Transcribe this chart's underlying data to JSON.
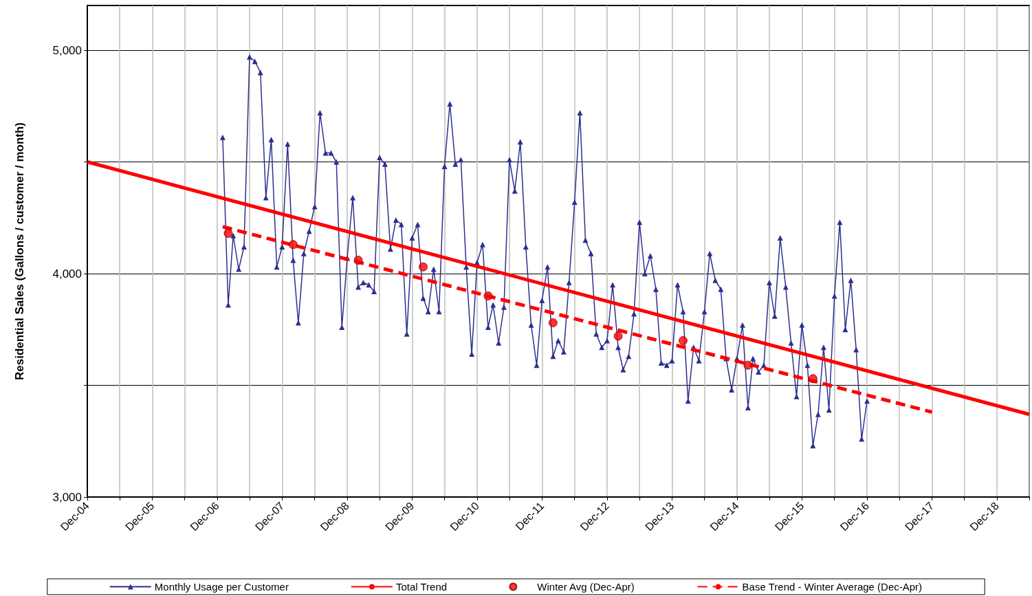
{
  "chart_data": {
    "type": "line",
    "ylabel": "Residential Sales (Gallons / customer / month)",
    "xlim": [
      "2004-12",
      "2019-06"
    ],
    "xticks": [
      {
        "value": "2004-12",
        "label": "Dec-04"
      },
      {
        "value": "2005-06",
        "label": null
      },
      {
        "value": "2005-12",
        "label": "Dec-05"
      },
      {
        "value": "2006-06",
        "label": null
      },
      {
        "value": "2006-12",
        "label": "Dec-06"
      },
      {
        "value": "2007-06",
        "label": null
      },
      {
        "value": "2007-12",
        "label": "Dec-07"
      },
      {
        "value": "2008-06",
        "label": null
      },
      {
        "value": "2008-12",
        "label": "Dec-08"
      },
      {
        "value": "2009-06",
        "label": null
      },
      {
        "value": "2009-12",
        "label": "Dec-09"
      },
      {
        "value": "2010-06",
        "label": null
      },
      {
        "value": "2010-12",
        "label": "Dec-10"
      },
      {
        "value": "2011-06",
        "label": null
      },
      {
        "value": "2011-12",
        "label": "Dec-11"
      },
      {
        "value": "2012-06",
        "label": null
      },
      {
        "value": "2012-12",
        "label": "Dec-12"
      },
      {
        "value": "2013-06",
        "label": null
      },
      {
        "value": "2013-12",
        "label": "Dec-13"
      },
      {
        "value": "2014-06",
        "label": null
      },
      {
        "value": "2014-12",
        "label": "Dec-14"
      },
      {
        "value": "2015-06",
        "label": null
      },
      {
        "value": "2015-12",
        "label": "Dec-15"
      },
      {
        "value": "2016-06",
        "label": null
      },
      {
        "value": "2016-12",
        "label": "Dec-16"
      },
      {
        "value": "2017-06",
        "label": null
      },
      {
        "value": "2017-12",
        "label": "Dec-17"
      },
      {
        "value": "2018-06",
        "label": null
      },
      {
        "value": "2018-12",
        "label": "Dec-18"
      },
      {
        "value": "2019-06",
        "label": null
      }
    ],
    "ylim": [
      3000,
      5200
    ],
    "yticks": [
      {
        "value": 3000,
        "label": "3,000"
      },
      {
        "value": 3500,
        "label": null
      },
      {
        "value": 4000,
        "label": "4,000"
      },
      {
        "value": 4500,
        "label": null
      },
      {
        "value": 5000,
        "label": "5,000"
      }
    ],
    "grid": true,
    "legend": "bottom",
    "series": [
      {
        "name": "Monthly Usage per Customer",
        "color": "#2b2f8f",
        "marker": "triangle",
        "line_style": "solid",
        "x": [
          "2007-01",
          "2007-02",
          "2007-03",
          "2007-04",
          "2007-05",
          "2007-06",
          "2007-07",
          "2007-08",
          "2007-09",
          "2007-10",
          "2007-11",
          "2007-12",
          "2008-01",
          "2008-02",
          "2008-03",
          "2008-04",
          "2008-05",
          "2008-06",
          "2008-07",
          "2008-08",
          "2008-09",
          "2008-10",
          "2008-11",
          "2008-12",
          "2009-01",
          "2009-02",
          "2009-03",
          "2009-04",
          "2009-05",
          "2009-06",
          "2009-07",
          "2009-08",
          "2009-09",
          "2009-10",
          "2009-11",
          "2009-12",
          "2010-01",
          "2010-02",
          "2010-03",
          "2010-04",
          "2010-05",
          "2010-06",
          "2010-07",
          "2010-08",
          "2010-09",
          "2010-10",
          "2010-11",
          "2010-12",
          "2011-01",
          "2011-02",
          "2011-03",
          "2011-04",
          "2011-05",
          "2011-06",
          "2011-07",
          "2011-08",
          "2011-09",
          "2011-10",
          "2011-11",
          "2011-12",
          "2012-01",
          "2012-02",
          "2012-03",
          "2012-04",
          "2012-05",
          "2012-06",
          "2012-07",
          "2012-08",
          "2012-09",
          "2012-10",
          "2012-11",
          "2012-12",
          "2013-01",
          "2013-02",
          "2013-03",
          "2013-04",
          "2013-05",
          "2013-06",
          "2013-07",
          "2013-08",
          "2013-09",
          "2013-10",
          "2013-11",
          "2013-12",
          "2014-01",
          "2014-02",
          "2014-03",
          "2014-04",
          "2014-05",
          "2014-06",
          "2014-07",
          "2014-08",
          "2014-09",
          "2014-10",
          "2014-11",
          "2014-12",
          "2015-01",
          "2015-02",
          "2015-03",
          "2015-04",
          "2015-05",
          "2015-06",
          "2015-07",
          "2015-08",
          "2015-09",
          "2015-10",
          "2015-11",
          "2015-12",
          "2016-01",
          "2016-02",
          "2016-03",
          "2016-04",
          "2016-05",
          "2016-06",
          "2016-07",
          "2016-08",
          "2016-09",
          "2016-10",
          "2016-11",
          "2016-12"
        ],
        "values": [
          4610,
          3860,
          4170,
          4020,
          4120,
          4970,
          4950,
          4900,
          4340,
          4600,
          4030,
          4120,
          4580,
          4060,
          3780,
          4090,
          4190,
          4300,
          4720,
          4540,
          4540,
          4500,
          3760,
          4070,
          4340,
          3940,
          3960,
          3950,
          3920,
          4520,
          4490,
          4110,
          4240,
          4220,
          3730,
          4160,
          4220,
          3890,
          3830,
          4020,
          3830,
          4480,
          4760,
          4490,
          4510,
          4030,
          3640,
          4050,
          4130,
          3760,
          3860,
          3690,
          3850,
          4510,
          4370,
          4590,
          4120,
          3770,
          3590,
          3880,
          4030,
          3630,
          3700,
          3650,
          3960,
          4320,
          4720,
          4150,
          4090,
          3730,
          3670,
          3700,
          3950,
          3670,
          3570,
          3630,
          3820,
          4230,
          4000,
          4080,
          3930,
          3600,
          3590,
          3610,
          3950,
          3830,
          3430,
          3670,
          3610,
          3830,
          4090,
          3970,
          3930,
          3620,
          3480,
          3620,
          3770,
          3400,
          3620,
          3560,
          3590,
          3960,
          3810,
          4160,
          3940,
          3690,
          3450,
          3770,
          3590,
          3230,
          3370,
          3670,
          3390,
          3900,
          4230,
          3750,
          3970,
          3660,
          3260,
          3430
        ]
      },
      {
        "name": "Total Trend",
        "color": "#ff0000",
        "marker": "none",
        "line_style": "solid",
        "x": [
          "2004-12",
          "2019-06"
        ],
        "values": [
          4500,
          3370
        ]
      },
      {
        "name": "Winter Avg (Dec-Apr)",
        "type": "scatter",
        "color": "#ff0000",
        "marker": "circle",
        "x": [
          "2007-02",
          "2008-02",
          "2009-02",
          "2010-02",
          "2011-02",
          "2012-02",
          "2013-02",
          "2014-02",
          "2015-02",
          "2016-02"
        ],
        "values": [
          4180,
          4130,
          4060,
          4030,
          3900,
          3780,
          3720,
          3700,
          3590,
          3530
        ]
      },
      {
        "name": "Base Trend - Winter Average (Dec-Apr)",
        "color": "#ff0000",
        "marker": "none",
        "line_style": "dashed",
        "x": [
          "2007-01",
          "2017-12"
        ],
        "values": [
          4210,
          3380
        ]
      }
    ]
  }
}
